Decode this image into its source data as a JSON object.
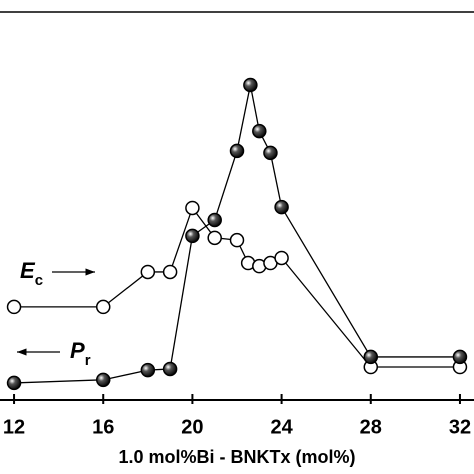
{
  "chart_data": {
    "type": "line",
    "x_label": "1.0 mol%Bi - BNKTx (mol%)",
    "xlim": [
      11.37,
      32.63
    ],
    "xticks": [
      12,
      16,
      20,
      24,
      28,
      32
    ],
    "ylim": [
      0,
      100
    ],
    "series": [
      {
        "color": "#000000",
        "marker": "filled",
        "x": [
          12,
          16,
          18,
          19,
          20,
          21,
          22,
          22.6,
          23,
          23.5,
          24,
          28,
          32
        ],
        "values": [
          4.4,
          5.2,
          7.7,
          8.0,
          42.3,
          46.4,
          64.2,
          81.2,
          69.3,
          63.7,
          49.7,
          11.1,
          11.1
        ]
      },
      {
        "color": "#000000",
        "marker": "open",
        "x": [
          12,
          16,
          18,
          19,
          20,
          21,
          22,
          22.5,
          23,
          23.5,
          24,
          28,
          32
        ],
        "values": [
          24.0,
          24.0,
          33.0,
          33.0,
          49.5,
          41.8,
          41.2,
          35.3,
          34.5,
          35.3,
          36.6,
          8.5,
          8.5
        ]
      }
    ],
    "annotations": [
      {
        "text": "E",
        "subscript": "c"
      },
      {
        "text": "P",
        "subscript": "r"
      }
    ]
  }
}
